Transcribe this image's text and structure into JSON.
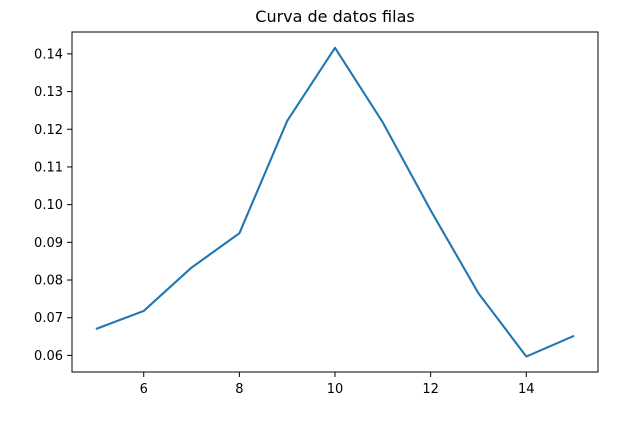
{
  "chart_data": {
    "type": "line",
    "title": "Curva de  datos filas",
    "xlabel": "",
    "ylabel": "",
    "xlim": [
      4.5,
      15.5
    ],
    "ylim": [
      0.0556,
      0.1458
    ],
    "xticks": [
      6,
      8,
      10,
      12,
      14
    ],
    "yticks": [
      0.06,
      0.07,
      0.08,
      0.09,
      0.1,
      0.11,
      0.12,
      0.13,
      0.14
    ],
    "ytick_labels": [
      "0.06",
      "0.07",
      "0.08",
      "0.09",
      "0.10",
      "0.11",
      "0.12",
      "0.13",
      "0.14"
    ],
    "grid": false,
    "series": [
      {
        "color": "#1f77b4",
        "x": [
          5,
          6,
          7,
          8,
          9,
          10,
          11,
          12,
          13,
          14,
          15
        ],
        "y": [
          0.067,
          0.0718,
          0.0833,
          0.0924,
          0.1222,
          0.1416,
          0.1218,
          0.0985,
          0.0765,
          0.0597,
          0.0652
        ]
      }
    ]
  }
}
